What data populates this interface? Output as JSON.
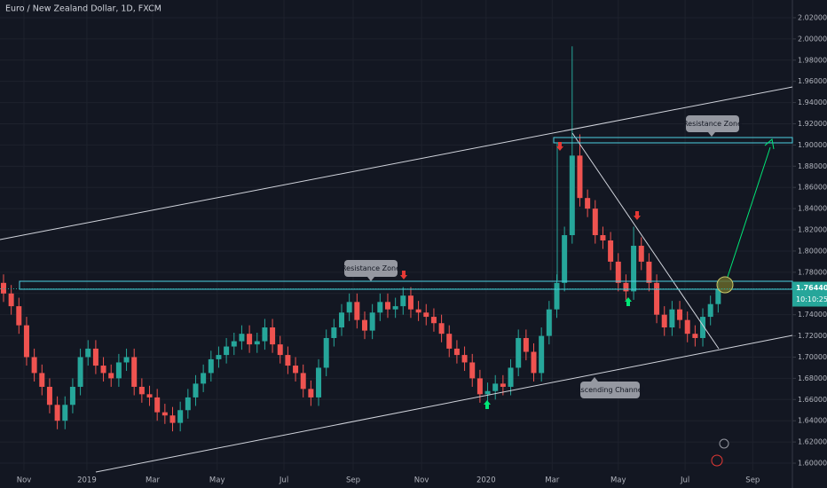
{
  "header": {
    "title": "Euro / New Zealand Dollar, 1D, FXCM"
  },
  "chart_data": {
    "type": "candlestick",
    "up_color": "#26a69a",
    "down_color": "#ef5350",
    "xlim": [
      -0.46,
      102.66
    ],
    "ylim": [
      1.5766,
      2.0367
    ],
    "xticks": [
      {
        "value": 2.66,
        "label": "Nov"
      },
      {
        "value": 10.85,
        "label": "2019"
      },
      {
        "value": 19.4,
        "label": "Mar"
      },
      {
        "value": 27.8,
        "label": "May"
      },
      {
        "value": 36.5,
        "label": "Jul"
      },
      {
        "value": 45.5,
        "label": "Sep"
      },
      {
        "value": 54.4,
        "label": "Nov"
      },
      {
        "value": 62.8,
        "label": "2020"
      },
      {
        "value": 71.4,
        "label": "Mar"
      },
      {
        "value": 80.0,
        "label": "May"
      },
      {
        "value": 88.7,
        "label": "Jul"
      },
      {
        "value": 97.5,
        "label": "Sep"
      }
    ],
    "yticks": [
      {
        "value": 1.6,
        "label": "1.60000"
      },
      {
        "value": 1.62,
        "label": "1.62000"
      },
      {
        "value": 1.64,
        "label": "1.64000"
      },
      {
        "value": 1.66,
        "label": "1.66000"
      },
      {
        "value": 1.68,
        "label": "1.68000"
      },
      {
        "value": 1.7,
        "label": "1.70000"
      },
      {
        "value": 1.72,
        "label": "1.72000"
      },
      {
        "value": 1.74,
        "label": "1.74000"
      },
      {
        "value": 1.76,
        "label": "1.76000"
      },
      {
        "value": 1.78,
        "label": "1.78000"
      },
      {
        "value": 1.8,
        "label": "1.80000"
      },
      {
        "value": 1.82,
        "label": "1.82000"
      },
      {
        "value": 1.84,
        "label": "1.84000"
      },
      {
        "value": 1.86,
        "label": "1.86000"
      },
      {
        "value": 1.88,
        "label": "1.88000"
      },
      {
        "value": 1.9,
        "label": "1.90000"
      },
      {
        "value": 1.92,
        "label": "1.92000"
      },
      {
        "value": 1.94,
        "label": "1.94000"
      },
      {
        "value": 1.96,
        "label": "1.96000"
      },
      {
        "value": 1.98,
        "label": "1.98000"
      },
      {
        "value": 2.0,
        "label": "2.00000"
      },
      {
        "value": 2.02,
        "label": "2.02000"
      }
    ],
    "last_price": {
      "value": 1.7644,
      "label": "1.76440"
    },
    "countdown": "10:10:25",
    "annotations": [
      "Resistance Zone",
      "Resistance Zone",
      "Ascending Channel"
    ],
    "candles": [
      [
        1.77,
        1.778,
        1.752,
        1.76
      ],
      [
        1.76,
        1.768,
        1.74,
        1.748
      ],
      [
        1.748,
        1.756,
        1.722,
        1.73
      ],
      [
        1.73,
        1.738,
        1.692,
        1.7
      ],
      [
        1.7,
        1.708,
        1.677,
        1.685
      ],
      [
        1.685,
        1.693,
        1.664,
        1.672
      ],
      [
        1.672,
        1.68,
        1.647,
        1.655
      ],
      [
        1.655,
        1.663,
        1.632,
        1.64
      ],
      [
        1.64,
        1.663,
        1.632,
        1.655
      ],
      [
        1.655,
        1.68,
        1.647,
        1.672
      ],
      [
        1.672,
        1.708,
        1.664,
        1.7
      ],
      [
        1.7,
        1.716,
        1.692,
        1.708
      ],
      [
        1.708,
        1.716,
        1.684,
        1.692
      ],
      [
        1.692,
        1.7,
        1.677,
        1.685
      ],
      [
        1.685,
        1.693,
        1.672,
        1.68
      ],
      [
        1.68,
        1.703,
        1.672,
        1.695
      ],
      [
        1.695,
        1.708,
        1.687,
        1.7
      ],
      [
        1.7,
        1.708,
        1.664,
        1.672
      ],
      [
        1.672,
        1.68,
        1.657,
        1.665
      ],
      [
        1.665,
        1.673,
        1.654,
        1.662
      ],
      [
        1.662,
        1.67,
        1.64,
        1.648
      ],
      [
        1.648,
        1.656,
        1.637,
        1.645
      ],
      [
        1.645,
        1.653,
        1.63,
        1.638
      ],
      [
        1.638,
        1.658,
        1.63,
        1.65
      ],
      [
        1.65,
        1.67,
        1.642,
        1.662
      ],
      [
        1.662,
        1.683,
        1.654,
        1.675
      ],
      [
        1.675,
        1.693,
        1.667,
        1.685
      ],
      [
        1.685,
        1.706,
        1.677,
        1.698
      ],
      [
        1.698,
        1.71,
        1.69,
        1.702
      ],
      [
        1.702,
        1.718,
        1.694,
        1.71
      ],
      [
        1.71,
        1.723,
        1.702,
        1.715
      ],
      [
        1.715,
        1.73,
        1.707,
        1.722
      ],
      [
        1.722,
        1.73,
        1.704,
        1.712
      ],
      [
        1.712,
        1.723,
        1.704,
        1.715
      ],
      [
        1.715,
        1.736,
        1.707,
        1.728
      ],
      [
        1.728,
        1.736,
        1.704,
        1.712
      ],
      [
        1.712,
        1.72,
        1.694,
        1.702
      ],
      [
        1.702,
        1.71,
        1.684,
        1.692
      ],
      [
        1.692,
        1.7,
        1.677,
        1.685
      ],
      [
        1.685,
        1.693,
        1.662,
        1.67
      ],
      [
        1.67,
        1.678,
        1.654,
        1.662
      ],
      [
        1.662,
        1.698,
        1.654,
        1.69
      ],
      [
        1.69,
        1.726,
        1.682,
        1.718
      ],
      [
        1.718,
        1.736,
        1.71,
        1.728
      ],
      [
        1.728,
        1.75,
        1.72,
        1.742
      ],
      [
        1.742,
        1.76,
        1.734,
        1.752
      ],
      [
        1.752,
        1.76,
        1.727,
        1.735
      ],
      [
        1.735,
        1.743,
        1.717,
        1.725
      ],
      [
        1.725,
        1.75,
        1.717,
        1.742
      ],
      [
        1.742,
        1.76,
        1.734,
        1.752
      ],
      [
        1.752,
        1.76,
        1.737,
        1.745
      ],
      [
        1.745,
        1.756,
        1.737,
        1.748
      ],
      [
        1.748,
        1.766,
        1.74,
        1.758
      ],
      [
        1.758,
        1.766,
        1.737,
        1.745
      ],
      [
        1.745,
        1.753,
        1.734,
        1.742
      ],
      [
        1.742,
        1.75,
        1.73,
        1.738
      ],
      [
        1.738,
        1.746,
        1.724,
        1.732
      ],
      [
        1.732,
        1.74,
        1.714,
        1.722
      ],
      [
        1.722,
        1.73,
        1.7,
        1.708
      ],
      [
        1.708,
        1.716,
        1.694,
        1.702
      ],
      [
        1.702,
        1.71,
        1.687,
        1.695
      ],
      [
        1.695,
        1.703,
        1.672,
        1.68
      ],
      [
        1.68,
        1.688,
        1.657,
        1.665
      ],
      [
        1.665,
        1.676,
        1.657,
        1.668
      ],
      [
        1.668,
        1.683,
        1.66,
        1.675
      ],
      [
        1.675,
        1.683,
        1.664,
        1.672
      ],
      [
        1.672,
        1.698,
        1.664,
        1.69
      ],
      [
        1.69,
        1.726,
        1.682,
        1.718
      ],
      [
        1.718,
        1.726,
        1.697,
        1.705
      ],
      [
        1.705,
        1.713,
        1.677,
        1.685
      ],
      [
        1.685,
        1.728,
        1.677,
        1.72
      ],
      [
        1.72,
        1.753,
        1.712,
        1.745
      ],
      [
        1.745,
        1.778,
        1.737,
        1.77
      ],
      [
        1.77,
        1.823,
        1.762,
        1.815
      ],
      [
        1.815,
        1.993,
        1.807,
        1.89
      ],
      [
        1.89,
        1.91,
        1.842,
        1.85
      ],
      [
        1.85,
        1.858,
        1.832,
        1.84
      ],
      [
        1.84,
        1.848,
        1.807,
        1.815
      ],
      [
        1.815,
        1.823,
        1.802,
        1.81
      ],
      [
        1.81,
        1.818,
        1.782,
        1.79
      ],
      [
        1.79,
        1.798,
        1.762,
        1.77
      ],
      [
        1.77,
        1.778,
        1.754,
        1.762
      ],
      [
        1.762,
        1.823,
        1.754,
        1.805
      ],
      [
        1.805,
        1.813,
        1.782,
        1.79
      ],
      [
        1.79,
        1.798,
        1.762,
        1.77
      ],
      [
        1.77,
        1.778,
        1.732,
        1.74
      ],
      [
        1.74,
        1.748,
        1.72,
        1.728
      ],
      [
        1.728,
        1.753,
        1.72,
        1.745
      ],
      [
        1.745,
        1.753,
        1.727,
        1.735
      ],
      [
        1.735,
        1.743,
        1.714,
        1.722
      ],
      [
        1.722,
        1.73,
        1.71,
        1.718
      ],
      [
        1.718,
        1.746,
        1.71,
        1.738
      ],
      [
        1.738,
        1.758,
        1.73,
        1.75
      ],
      [
        1.75,
        1.772,
        1.742,
        1.764
      ]
    ]
  }
}
